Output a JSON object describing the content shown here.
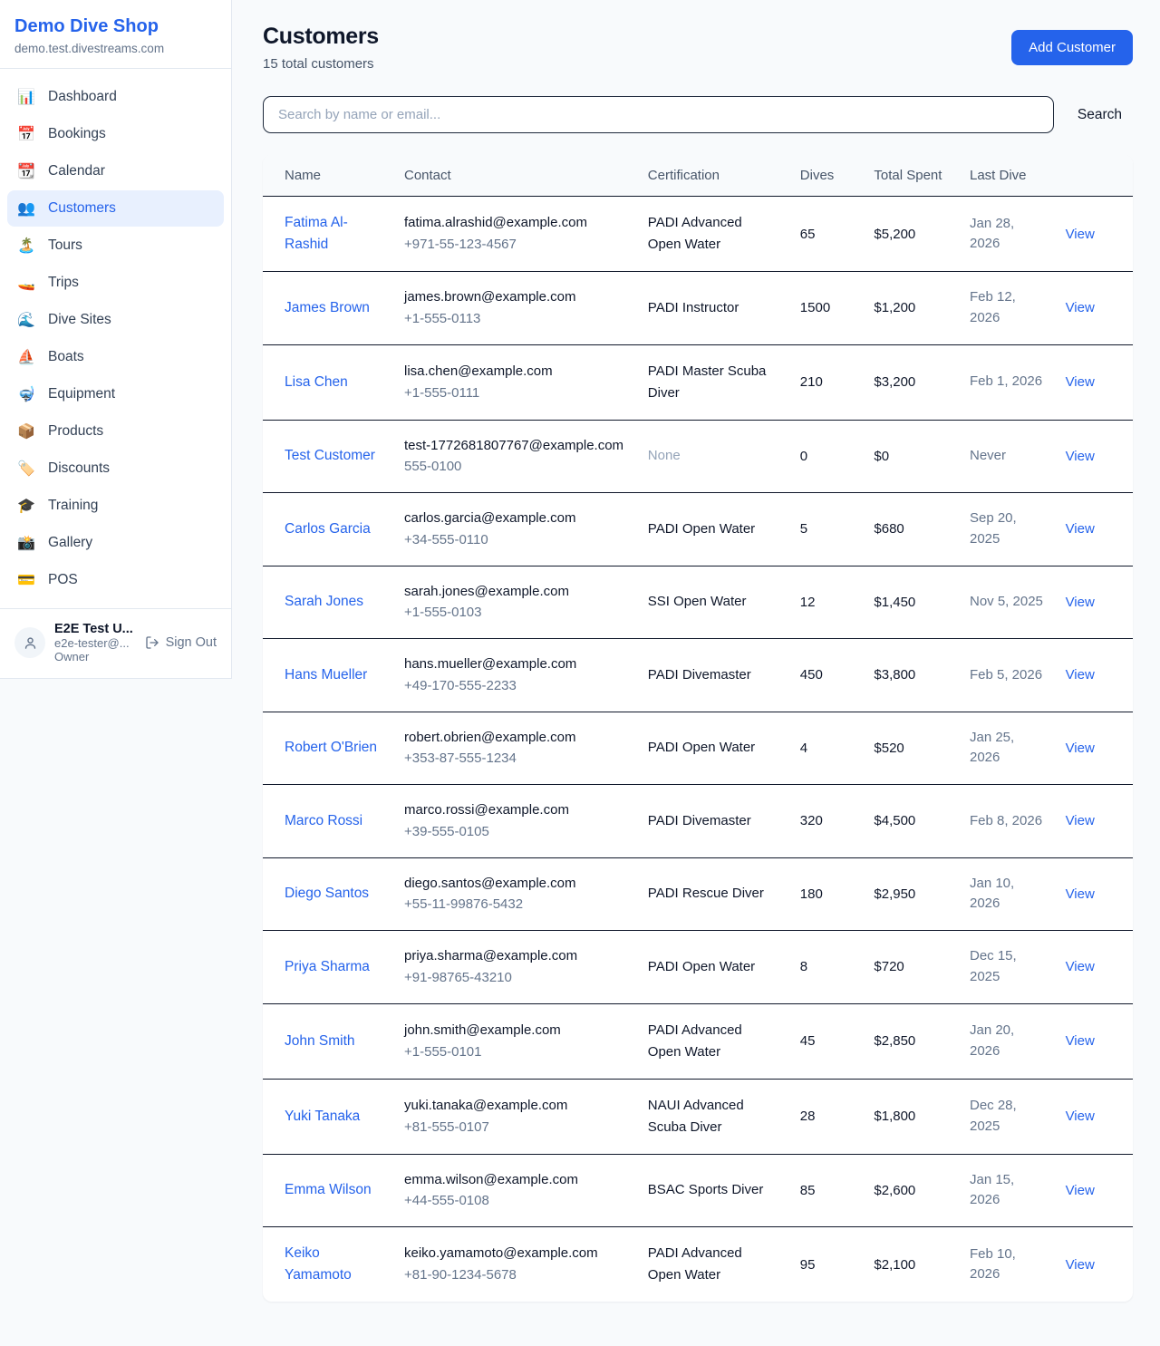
{
  "sidebar": {
    "shop_name": "Demo Dive Shop",
    "domain": "demo.test.divestreams.com",
    "items": [
      {
        "name": "dashboard",
        "icon": "📊",
        "label": "Dashboard",
        "active": false
      },
      {
        "name": "bookings",
        "icon": "📅",
        "label": "Bookings",
        "active": false
      },
      {
        "name": "calendar",
        "icon": "📆",
        "label": "Calendar",
        "active": false
      },
      {
        "name": "customers",
        "icon": "👥",
        "label": "Customers",
        "active": true
      },
      {
        "name": "tours",
        "icon": "🏝️",
        "label": "Tours",
        "active": false
      },
      {
        "name": "trips",
        "icon": "🚤",
        "label": "Trips",
        "active": false
      },
      {
        "name": "dive-sites",
        "icon": "🌊",
        "label": "Dive Sites",
        "active": false
      },
      {
        "name": "boats",
        "icon": "⛵",
        "label": "Boats",
        "active": false
      },
      {
        "name": "equipment",
        "icon": "🤿",
        "label": "Equipment",
        "active": false
      },
      {
        "name": "products",
        "icon": "📦",
        "label": "Products",
        "active": false
      },
      {
        "name": "discounts",
        "icon": "🏷️",
        "label": "Discounts",
        "active": false
      },
      {
        "name": "training",
        "icon": "🎓",
        "label": "Training",
        "active": false
      },
      {
        "name": "gallery",
        "icon": "📸",
        "label": "Gallery",
        "active": false
      },
      {
        "name": "pos",
        "icon": "💳",
        "label": "POS",
        "active": false
      }
    ],
    "user": {
      "name": "E2E Test U...",
      "email": "e2e-tester@...",
      "role": "Owner",
      "sign_out_label": "Sign Out"
    }
  },
  "header": {
    "title": "Customers",
    "subtitle": "15 total customers",
    "add_button": "Add Customer"
  },
  "search": {
    "placeholder": "Search by name or email...",
    "button": "Search"
  },
  "table": {
    "columns": [
      "Name",
      "Contact",
      "Certification",
      "Dives",
      "Total Spent",
      "Last Dive",
      ""
    ],
    "view_label": "View",
    "rows": [
      {
        "name": "Fatima Al-Rashid",
        "email": "fatima.alrashid@example.com",
        "phone": "+971-55-123-4567",
        "certification": "PADI Advanced Open Water",
        "dives": "65",
        "total_spent": "$5,200",
        "last_dive": "Jan 28, 2026"
      },
      {
        "name": "James Brown",
        "email": "james.brown@example.com",
        "phone": "+1-555-0113",
        "certification": "PADI Instructor",
        "dives": "1500",
        "total_spent": "$1,200",
        "last_dive": "Feb 12, 2026"
      },
      {
        "name": "Lisa Chen",
        "email": "lisa.chen@example.com",
        "phone": "+1-555-0111",
        "certification": "PADI Master Scuba Diver",
        "dives": "210",
        "total_spent": "$3,200",
        "last_dive": "Feb 1, 2026"
      },
      {
        "name": "Test Customer",
        "email": "test-1772681807767@example.com",
        "phone": "555-0100",
        "certification": "None",
        "dives": "0",
        "total_spent": "$0",
        "last_dive": "Never"
      },
      {
        "name": "Carlos Garcia",
        "email": "carlos.garcia@example.com",
        "phone": "+34-555-0110",
        "certification": "PADI Open Water",
        "dives": "5",
        "total_spent": "$680",
        "last_dive": "Sep 20, 2025"
      },
      {
        "name": "Sarah Jones",
        "email": "sarah.jones@example.com",
        "phone": "+1-555-0103",
        "certification": "SSI Open Water",
        "dives": "12",
        "total_spent": "$1,450",
        "last_dive": "Nov 5, 2025"
      },
      {
        "name": "Hans Mueller",
        "email": "hans.mueller@example.com",
        "phone": "+49-170-555-2233",
        "certification": "PADI Divemaster",
        "dives": "450",
        "total_spent": "$3,800",
        "last_dive": "Feb 5, 2026"
      },
      {
        "name": "Robert O'Brien",
        "email": "robert.obrien@example.com",
        "phone": "+353-87-555-1234",
        "certification": "PADI Open Water",
        "dives": "4",
        "total_spent": "$520",
        "last_dive": "Jan 25, 2026"
      },
      {
        "name": "Marco Rossi",
        "email": "marco.rossi@example.com",
        "phone": "+39-555-0105",
        "certification": "PADI Divemaster",
        "dives": "320",
        "total_spent": "$4,500",
        "last_dive": "Feb 8, 2026"
      },
      {
        "name": "Diego Santos",
        "email": "diego.santos@example.com",
        "phone": "+55-11-99876-5432",
        "certification": "PADI Rescue Diver",
        "dives": "180",
        "total_spent": "$2,950",
        "last_dive": "Jan 10, 2026"
      },
      {
        "name": "Priya Sharma",
        "email": "priya.sharma@example.com",
        "phone": "+91-98765-43210",
        "certification": "PADI Open Water",
        "dives": "8",
        "total_spent": "$720",
        "last_dive": "Dec 15, 2025"
      },
      {
        "name": "John Smith",
        "email": "john.smith@example.com",
        "phone": "+1-555-0101",
        "certification": "PADI Advanced Open Water",
        "dives": "45",
        "total_spent": "$2,850",
        "last_dive": "Jan 20, 2026"
      },
      {
        "name": "Yuki Tanaka",
        "email": "yuki.tanaka@example.com",
        "phone": "+81-555-0107",
        "certification": "NAUI Advanced Scuba Diver",
        "dives": "28",
        "total_spent": "$1,800",
        "last_dive": "Dec 28, 2025"
      },
      {
        "name": "Emma Wilson",
        "email": "emma.wilson@example.com",
        "phone": "+44-555-0108",
        "certification": "BSAC Sports Diver",
        "dives": "85",
        "total_spent": "$2,600",
        "last_dive": "Jan 15, 2026"
      },
      {
        "name": "Keiko Yamamoto",
        "email": "keiko.yamamoto@example.com",
        "phone": "+81-90-1234-5678",
        "certification": "PADI Advanced Open Water",
        "dives": "95",
        "total_spent": "$2,100",
        "last_dive": "Feb 10, 2026"
      }
    ]
  },
  "colors": {
    "accent": "#2563eb",
    "active_nav_bg": "#e8f0fe",
    "page_bg": "#f8fafc",
    "row_border": "#0f172a",
    "muted_text": "#64748b"
  }
}
